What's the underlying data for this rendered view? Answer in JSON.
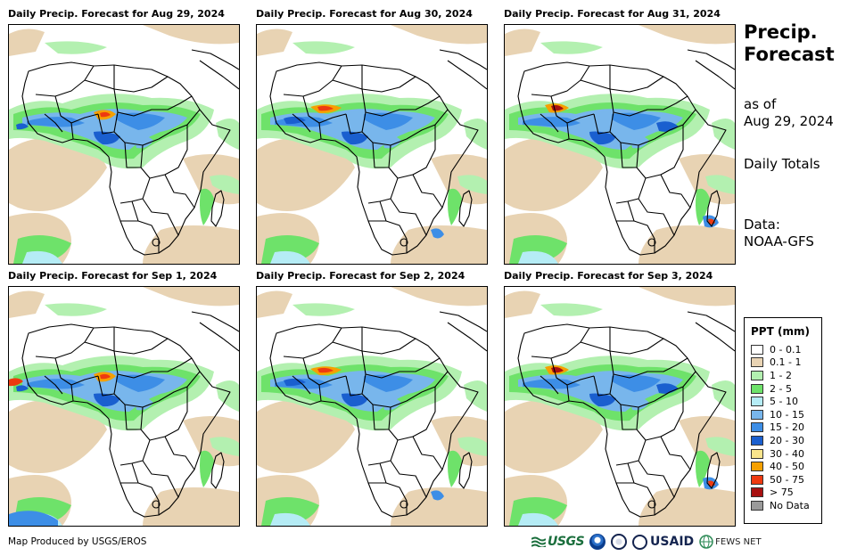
{
  "panels": [
    {
      "title": "Daily Precip. Forecast for Aug 29, 2024"
    },
    {
      "title": "Daily Precip. Forecast for Aug 30, 2024"
    },
    {
      "title": "Daily Precip. Forecast for Aug 31, 2024"
    },
    {
      "title": "Daily Precip. Forecast for Sep 1, 2024"
    },
    {
      "title": "Daily Precip. Forecast for Sep 2, 2024"
    },
    {
      "title": "Daily Precip. Forecast for Sep 3, 2024"
    }
  ],
  "sidebar": {
    "title_line1": "Precip.",
    "title_line2": "Forecast",
    "asof_line1": "as of",
    "asof_line2": "Aug 29, 2024",
    "totals": "Daily Totals",
    "data_line1": "Data:",
    "data_line2": "NOAA-GFS"
  },
  "legend": {
    "title": "PPT (mm)",
    "items": [
      {
        "label": "0 - 0.1",
        "color": "#ffffff"
      },
      {
        "label": "0.1 - 1",
        "color": "#e8d3b3"
      },
      {
        "label": "1 - 2",
        "color": "#b3f0b0"
      },
      {
        "label": "2 - 5",
        "color": "#6ee26a"
      },
      {
        "label": "5 - 10",
        "color": "#b5ecf5"
      },
      {
        "label": "10 - 15",
        "color": "#78b6ec"
      },
      {
        "label": "15 - 20",
        "color": "#3d8ee6"
      },
      {
        "label": "20 - 30",
        "color": "#1a5fcf"
      },
      {
        "label": "30 - 40",
        "color": "#fae58c"
      },
      {
        "label": "40 - 50",
        "color": "#f5a000"
      },
      {
        "label": "50 - 75",
        "color": "#ee3a10"
      },
      {
        "label": "> 75",
        "color": "#a81010"
      },
      {
        "label": "No Data",
        "color": "#9a9a9a"
      }
    ]
  },
  "credit": "Map Produced by USGS/EROS",
  "logos": {
    "usgs": "USGS",
    "usaid": "USAID",
    "fews": "FEWS NET"
  }
}
